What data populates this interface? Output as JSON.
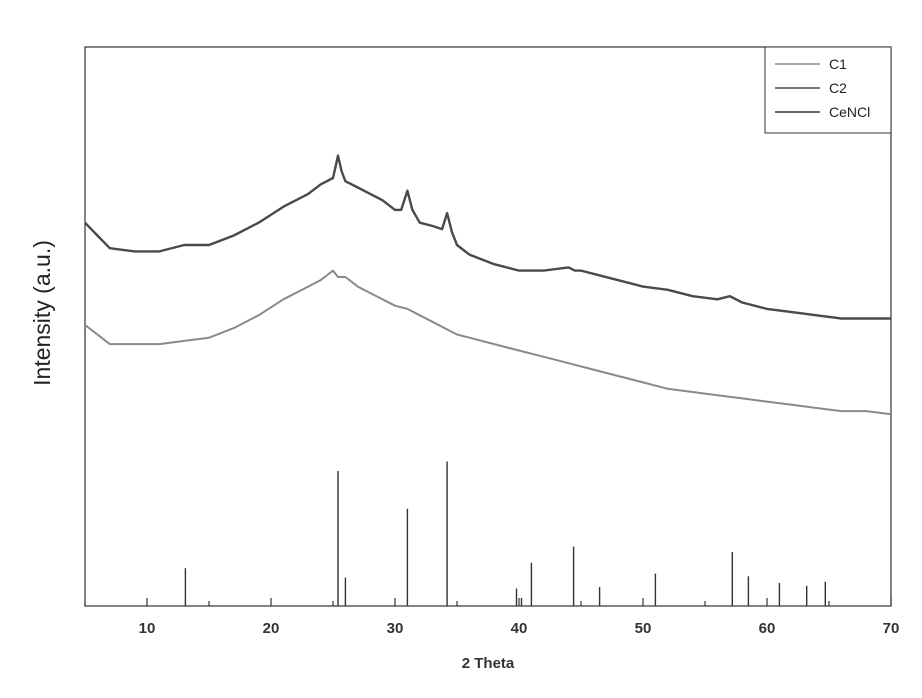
{
  "chart_data": {
    "type": "line",
    "title": "",
    "xlabel": "2 Theta",
    "ylabel": "Intensity (a.u.)",
    "xlim": [
      5,
      70
    ],
    "x_ticks": [
      10,
      20,
      30,
      40,
      50,
      60,
      70
    ],
    "y_ticks_shown": false,
    "grid": false,
    "legend_position": "top-right",
    "series": [
      {
        "name": "C1",
        "kind": "line",
        "color": "#8a8a8a",
        "x": [
          5,
          7,
          9,
          11,
          13,
          15,
          17,
          19,
          21,
          23,
          24,
          25,
          25.4,
          26,
          27,
          28,
          29,
          30,
          31,
          32,
          33,
          34,
          35,
          36,
          38,
          40,
          42,
          44,
          46,
          48,
          50,
          52,
          54,
          56,
          58,
          60,
          62,
          64,
          66,
          68,
          70
        ],
        "y": [
          0.88,
          0.82,
          0.82,
          0.82,
          0.83,
          0.84,
          0.87,
          0.91,
          0.96,
          1.0,
          1.02,
          1.05,
          1.03,
          1.03,
          1.0,
          0.98,
          0.96,
          0.94,
          0.93,
          0.91,
          0.89,
          0.87,
          0.85,
          0.84,
          0.82,
          0.8,
          0.78,
          0.76,
          0.74,
          0.72,
          0.7,
          0.68,
          0.67,
          0.66,
          0.65,
          0.64,
          0.63,
          0.62,
          0.61,
          0.61,
          0.6
        ]
      },
      {
        "name": "C2",
        "kind": "line",
        "color": "#4a4a4a",
        "x": [
          5,
          6,
          7,
          9,
          11,
          13,
          15,
          17,
          19,
          21,
          23,
          24,
          25,
          25.4,
          25.7,
          26,
          27,
          28,
          29,
          30,
          30.5,
          31,
          31.4,
          32,
          33,
          33.8,
          34.2,
          34.6,
          35,
          36,
          38,
          40,
          42,
          44,
          44.5,
          45,
          46,
          48,
          50,
          52,
          54,
          56,
          57,
          58,
          60,
          62,
          64,
          66,
          68,
          70
        ],
        "y": [
          1.2,
          1.16,
          1.12,
          1.11,
          1.11,
          1.13,
          1.13,
          1.16,
          1.2,
          1.25,
          1.29,
          1.32,
          1.34,
          1.41,
          1.36,
          1.33,
          1.31,
          1.29,
          1.27,
          1.24,
          1.24,
          1.3,
          1.24,
          1.2,
          1.19,
          1.18,
          1.23,
          1.17,
          1.13,
          1.1,
          1.07,
          1.05,
          1.05,
          1.06,
          1.05,
          1.05,
          1.04,
          1.02,
          1.0,
          0.99,
          0.97,
          0.96,
          0.97,
          0.95,
          0.93,
          0.92,
          0.91,
          0.9,
          0.9,
          0.9
        ]
      },
      {
        "name": "CeNCl",
        "kind": "stick",
        "color": "#333333",
        "x": [
          13.1,
          25.4,
          26.0,
          31.0,
          34.2,
          39.8,
          40.2,
          41.0,
          44.4,
          46.5,
          51.0,
          57.2,
          58.5,
          61.0,
          63.2,
          64.7
        ],
        "y": [
          28,
          100,
          21,
          72,
          107,
          13,
          6,
          32,
          44,
          14,
          24,
          40,
          22,
          17,
          15,
          18
        ]
      }
    ]
  }
}
